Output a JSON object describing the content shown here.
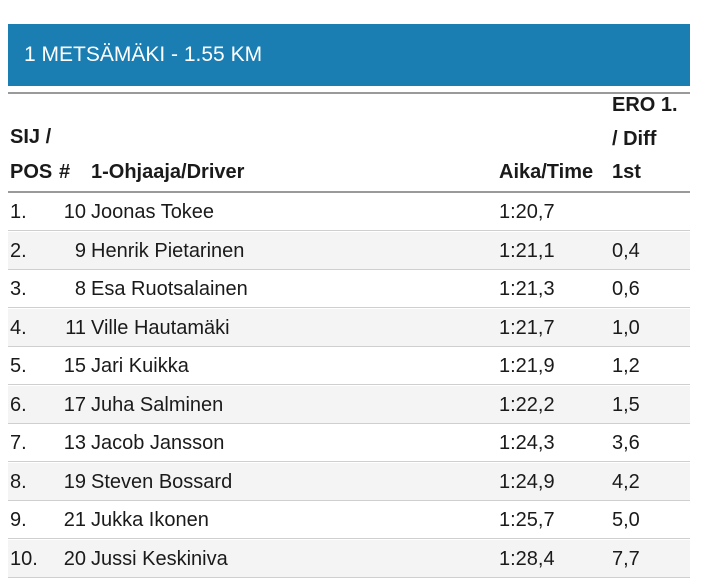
{
  "stage": {
    "title": "1 METSÄMÄKI - 1.55 KM"
  },
  "table": {
    "headers": {
      "pos_line1": "SIJ /",
      "pos_line2": "POS",
      "num": "#",
      "driver": "1-Ohjaaja/Driver",
      "time": "Aika/Time",
      "diff_line1": "ERO 1.",
      "diff_line2": "/ Diff",
      "diff_line3": "1st"
    },
    "rows": [
      {
        "pos": "1.",
        "num": "10",
        "driver": "Joonas Tokee",
        "time": "1:20,7",
        "diff": ""
      },
      {
        "pos": "2.",
        "num": "9",
        "driver": "Henrik Pietarinen",
        "time": "1:21,1",
        "diff": "0,4"
      },
      {
        "pos": "3.",
        "num": "8",
        "driver": "Esa Ruotsalainen",
        "time": "1:21,3",
        "diff": "0,6"
      },
      {
        "pos": "4.",
        "num": "11",
        "driver": "Ville Hautamäki",
        "time": "1:21,7",
        "diff": "1,0"
      },
      {
        "pos": "5.",
        "num": "15",
        "driver": "Jari Kuikka",
        "time": "1:21,9",
        "diff": "1,2"
      },
      {
        "pos": "6.",
        "num": "17",
        "driver": "Juha Salminen",
        "time": "1:22,2",
        "diff": "1,5"
      },
      {
        "pos": "7.",
        "num": "13",
        "driver": "Jacob Jansson",
        "time": "1:24,3",
        "diff": "3,6"
      },
      {
        "pos": "8.",
        "num": "19",
        "driver": "Steven Bossard",
        "time": "1:24,9",
        "diff": "4,2"
      },
      {
        "pos": "9.",
        "num": "21",
        "driver": "Jukka Ikonen",
        "time": "1:25,7",
        "diff": "5,0"
      },
      {
        "pos": "10.",
        "num": "20",
        "driver": "Jussi Keskiniva",
        "time": "1:28,4",
        "diff": "7,7"
      }
    ]
  }
}
